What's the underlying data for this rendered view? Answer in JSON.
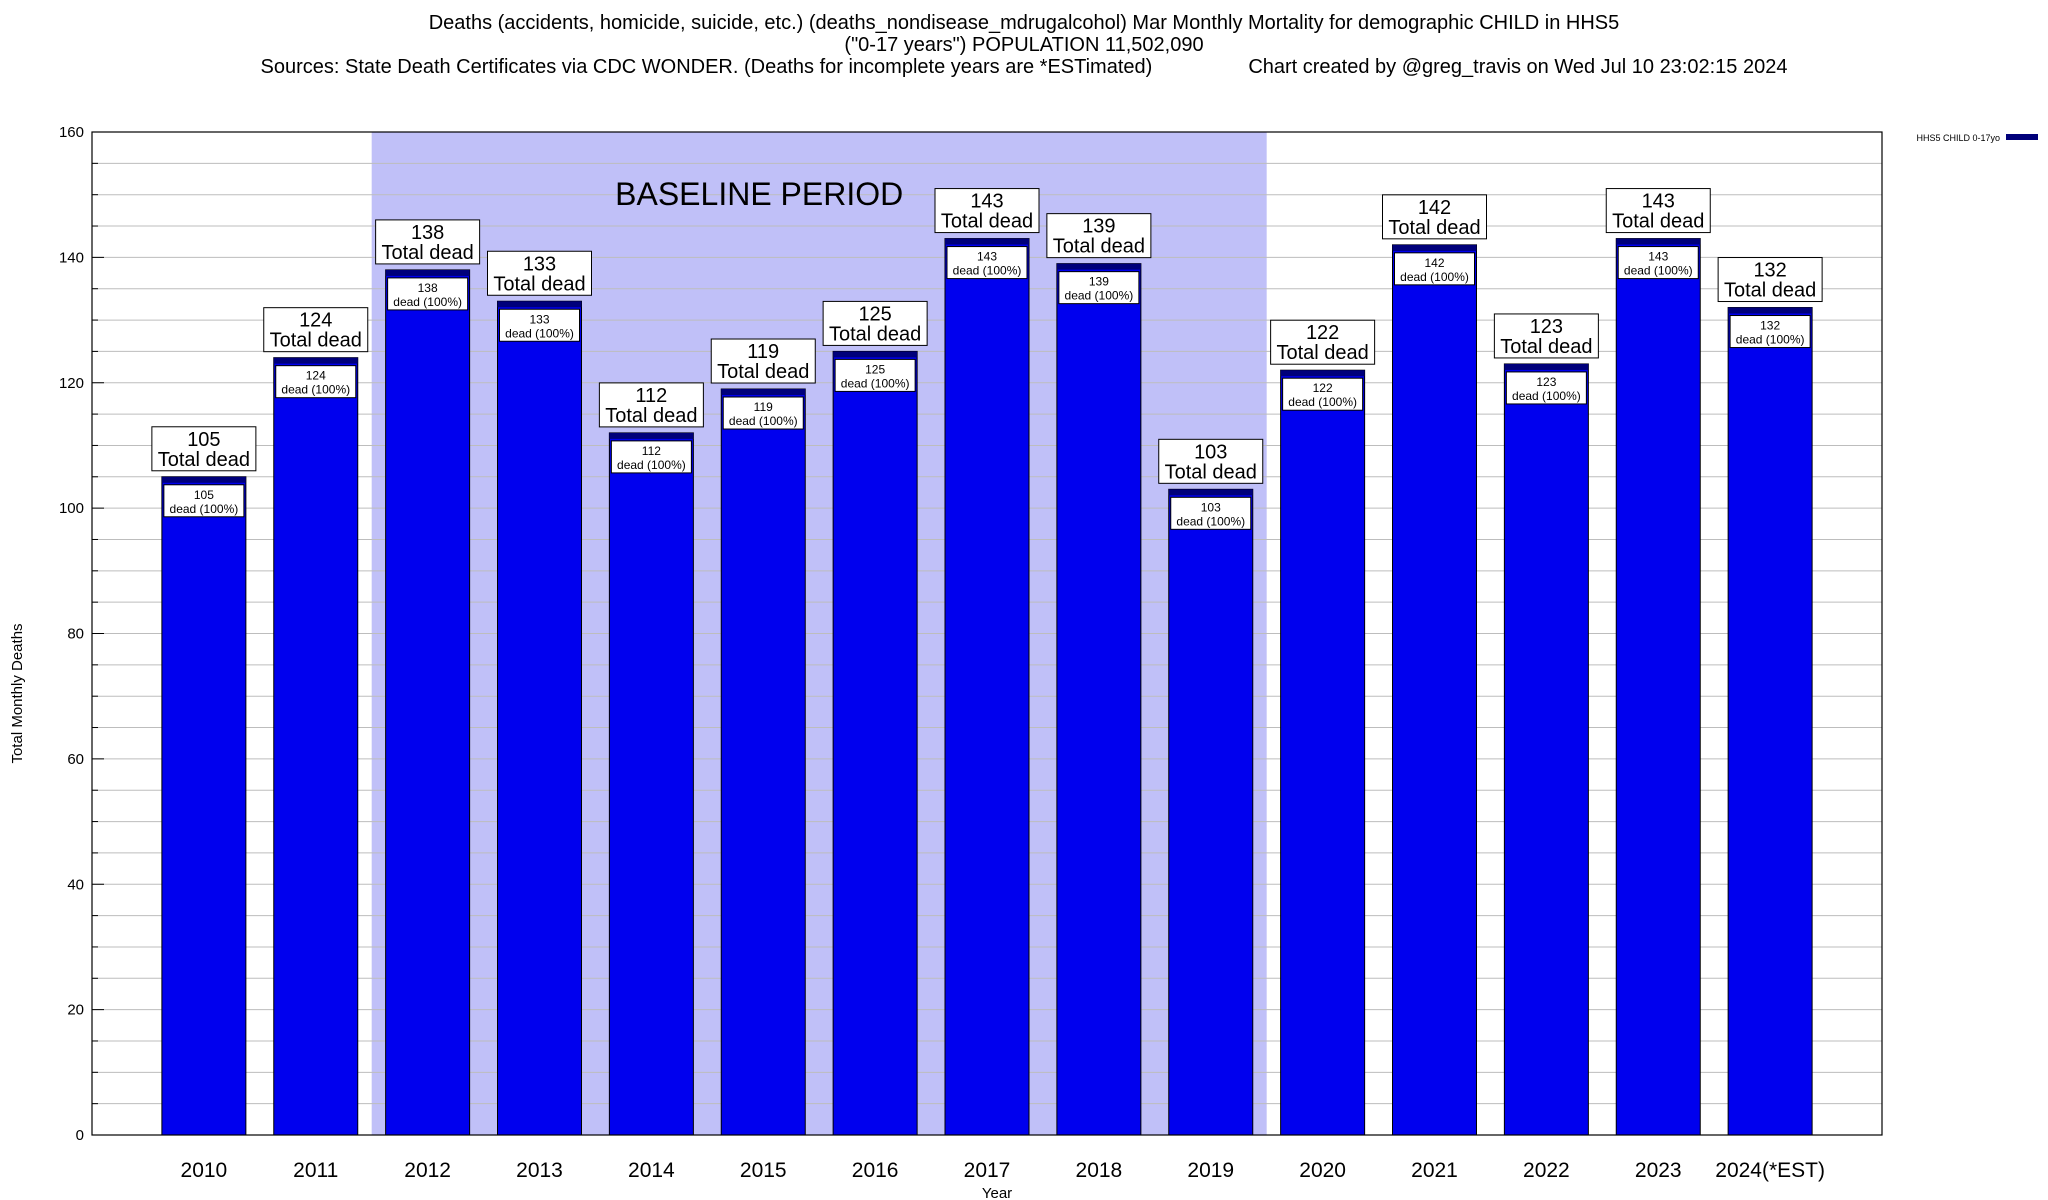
{
  "titles": {
    "line1": "Deaths (accidents, homicide, suicide, etc.) (deaths_nondisease_mdrugalcohol) Mar Monthly Mortality for demographic CHILD in HHS5",
    "line2": "(\"0-17 years\") POPULATION 11,502,090",
    "line3_left": "Sources: State Death Certificates via CDC WONDER. (Deaths for incomplete years are *ESTimated)",
    "line3_right": "Chart created by @greg_travis on Wed Jul 10 23:02:15 2024"
  },
  "colors": {
    "bar": "#0000ee",
    "bar_top": "#00007a",
    "baseline_shade": "#c0c0f8",
    "grid": "#bdbdbd"
  },
  "chart_data": {
    "type": "bar",
    "xlabel": "Year",
    "ylabel": "Total Monthly Deaths",
    "ylim": [
      0,
      160
    ],
    "yticks": [
      0,
      20,
      40,
      60,
      80,
      100,
      120,
      140,
      160
    ],
    "grid": true,
    "legend": {
      "placement": "top-right",
      "entries": [
        "HHS5 CHILD 0-17yo"
      ]
    },
    "categories": [
      "2010",
      "2011",
      "2012",
      "2013",
      "2014",
      "2015",
      "2016",
      "2017",
      "2018",
      "2019",
      "2020",
      "2021",
      "2022",
      "2023",
      "2024(*EST)"
    ],
    "series": [
      {
        "name": "HHS5 CHILD 0-17yo",
        "values": [
          105,
          124,
          138,
          133,
          112,
          119,
          125,
          143,
          139,
          103,
          122,
          142,
          123,
          143,
          132
        ]
      }
    ],
    "annotations": {
      "baseline_label": "BASELINE PERIOD",
      "baseline_range": [
        "2012",
        "2019"
      ],
      "total_label": "Total dead",
      "inner_label": "dead (100%)"
    }
  }
}
